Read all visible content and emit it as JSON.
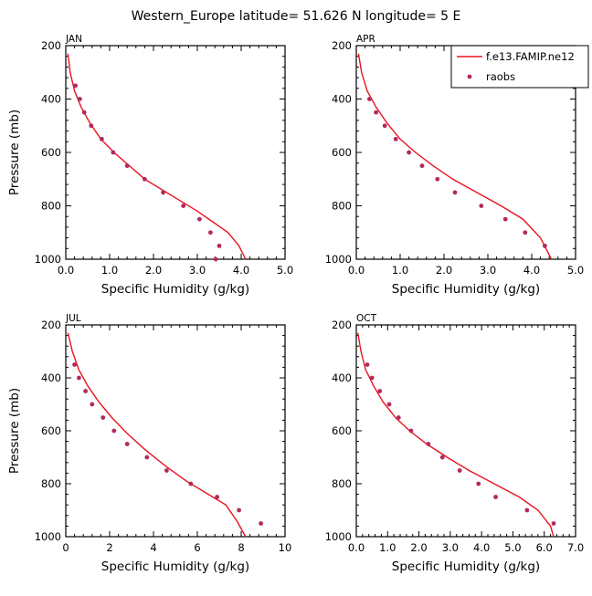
{
  "title": "Western_Europe  latitude= 51.626 N longitude= 5 E",
  "colors": {
    "model": "#e8141e",
    "obs": "#b22a5c",
    "frame": "#000000"
  },
  "legend": {
    "model_label": "f.e13.FAMIP.ne12",
    "obs_label": "raobs",
    "placement": "top-right of APR panel"
  },
  "chart_data": [
    {
      "type": "line",
      "panel": "JAN",
      "xlabel": "Specific Humidity (g/kg)",
      "ylabel": "Pressure (mb)",
      "xlim": [
        0,
        5
      ],
      "ylim": [
        1000,
        200
      ],
      "xticks": [
        0,
        1,
        2,
        3,
        4,
        5
      ],
      "xtick_labels": [
        "0.0",
        "1.0",
        "2.0",
        "3.0",
        "4.0",
        "5.0"
      ],
      "yticks": [
        200,
        400,
        600,
        800,
        1000
      ],
      "ytick_labels": [
        "200",
        "400",
        "600",
        "800",
        "1000"
      ],
      "series": [
        {
          "name": "f.e13.FAMIP.ne12",
          "kind": "line",
          "x": [
            0.05,
            0.1,
            0.2,
            0.35,
            0.55,
            0.8,
            1.1,
            1.45,
            1.8,
            2.2,
            2.6,
            3.0,
            3.35,
            3.7,
            3.95,
            4.1
          ],
          "y": [
            230,
            300,
            370,
            430,
            490,
            550,
            600,
            650,
            700,
            740,
            780,
            820,
            860,
            900,
            950,
            1000
          ]
        },
        {
          "name": "raobs",
          "kind": "scatter",
          "x": [
            0.22,
            0.32,
            0.42,
            0.58,
            0.82,
            1.08,
            1.4,
            1.8,
            2.22,
            2.68,
            3.05,
            3.3,
            3.5,
            3.42
          ],
          "y": [
            350,
            400,
            450,
            500,
            550,
            600,
            650,
            700,
            750,
            800,
            850,
            900,
            950,
            1000
          ]
        }
      ]
    },
    {
      "type": "line",
      "panel": "APR",
      "xlabel": "Specific Humidity (g/kg)",
      "ylabel": "",
      "xlim": [
        0,
        5
      ],
      "ylim": [
        1000,
        200
      ],
      "xticks": [
        0,
        1,
        2,
        3,
        4,
        5
      ],
      "xtick_labels": [
        "0.0",
        "1.0",
        "2.0",
        "3.0",
        "4.0",
        "5.0"
      ],
      "yticks": [
        200,
        400,
        600,
        800,
        1000
      ],
      "ytick_labels": [
        "200",
        "400",
        "600",
        "800",
        "1000"
      ],
      "series": [
        {
          "name": "f.e13.FAMIP.ne12",
          "kind": "line",
          "x": [
            0.05,
            0.12,
            0.25,
            0.45,
            0.7,
            1.0,
            1.35,
            1.75,
            2.2,
            2.75,
            3.3,
            3.8,
            4.2,
            4.45
          ],
          "y": [
            230,
            300,
            370,
            430,
            490,
            550,
            600,
            650,
            700,
            750,
            800,
            850,
            920,
            1000
          ]
        },
        {
          "name": "raobs",
          "kind": "scatter",
          "x": [
            0.3,
            0.45,
            0.65,
            0.9,
            1.2,
            1.5,
            1.85,
            2.25,
            2.85,
            3.4,
            3.85,
            4.3
          ],
          "y": [
            400,
            450,
            500,
            550,
            600,
            650,
            700,
            750,
            800,
            850,
            900,
            950
          ]
        }
      ]
    },
    {
      "type": "line",
      "panel": "JUL",
      "xlabel": "Specific Humidity (g/kg)",
      "ylabel": "Pressure (mb)",
      "xlim": [
        0,
        10
      ],
      "ylim": [
        1000,
        200
      ],
      "xticks": [
        0,
        2,
        4,
        6,
        8,
        10
      ],
      "xtick_labels": [
        "0",
        "2",
        "4",
        "6",
        "8",
        "10"
      ],
      "yticks": [
        200,
        400,
        600,
        800,
        1000
      ],
      "ytick_labels": [
        "200",
        "400",
        "600",
        "800",
        "1000"
      ],
      "series": [
        {
          "name": "f.e13.FAMIP.ne12",
          "kind": "line",
          "x": [
            0.1,
            0.3,
            0.6,
            1.0,
            1.5,
            2.1,
            2.8,
            3.6,
            4.5,
            5.5,
            6.5,
            7.3,
            7.8,
            8.2
          ],
          "y": [
            230,
            300,
            370,
            430,
            490,
            550,
            610,
            670,
            730,
            790,
            840,
            880,
            940,
            1000
          ]
        },
        {
          "name": "raobs",
          "kind": "scatter",
          "x": [
            0.4,
            0.6,
            0.9,
            1.2,
            1.7,
            2.2,
            2.8,
            3.7,
            4.6,
            5.7,
            6.9,
            7.9,
            8.9
          ],
          "y": [
            350,
            400,
            450,
            500,
            550,
            600,
            650,
            700,
            750,
            800,
            850,
            900,
            950
          ]
        }
      ]
    },
    {
      "type": "line",
      "panel": "OCT",
      "xlabel": "Specific Humidity (g/kg)",
      "ylabel": "",
      "xlim": [
        0,
        7
      ],
      "ylim": [
        1000,
        200
      ],
      "xticks": [
        0,
        1,
        2,
        3,
        4,
        5,
        6,
        7
      ],
      "xtick_labels": [
        "0.0",
        "1.0",
        "2.0",
        "3.0",
        "4.0",
        "5.0",
        "6.0",
        "7.0"
      ],
      "yticks": [
        200,
        400,
        600,
        800,
        1000
      ],
      "ytick_labels": [
        "200",
        "400",
        "600",
        "800",
        "1000"
      ],
      "series": [
        {
          "name": "f.e13.FAMIP.ne12",
          "kind": "line",
          "x": [
            0.05,
            0.15,
            0.3,
            0.55,
            0.85,
            1.25,
            1.7,
            2.25,
            2.9,
            3.6,
            4.4,
            5.2,
            5.8,
            6.2,
            6.3
          ],
          "y": [
            230,
            300,
            370,
            430,
            490,
            550,
            600,
            650,
            700,
            750,
            800,
            850,
            900,
            960,
            1000
          ]
        },
        {
          "name": "raobs",
          "kind": "scatter",
          "x": [
            0.35,
            0.5,
            0.75,
            1.05,
            1.35,
            1.75,
            2.3,
            2.75,
            3.3,
            3.9,
            4.45,
            5.45,
            6.3
          ],
          "y": [
            350,
            400,
            450,
            500,
            550,
            600,
            650,
            700,
            750,
            800,
            850,
            900,
            950
          ]
        }
      ]
    }
  ]
}
